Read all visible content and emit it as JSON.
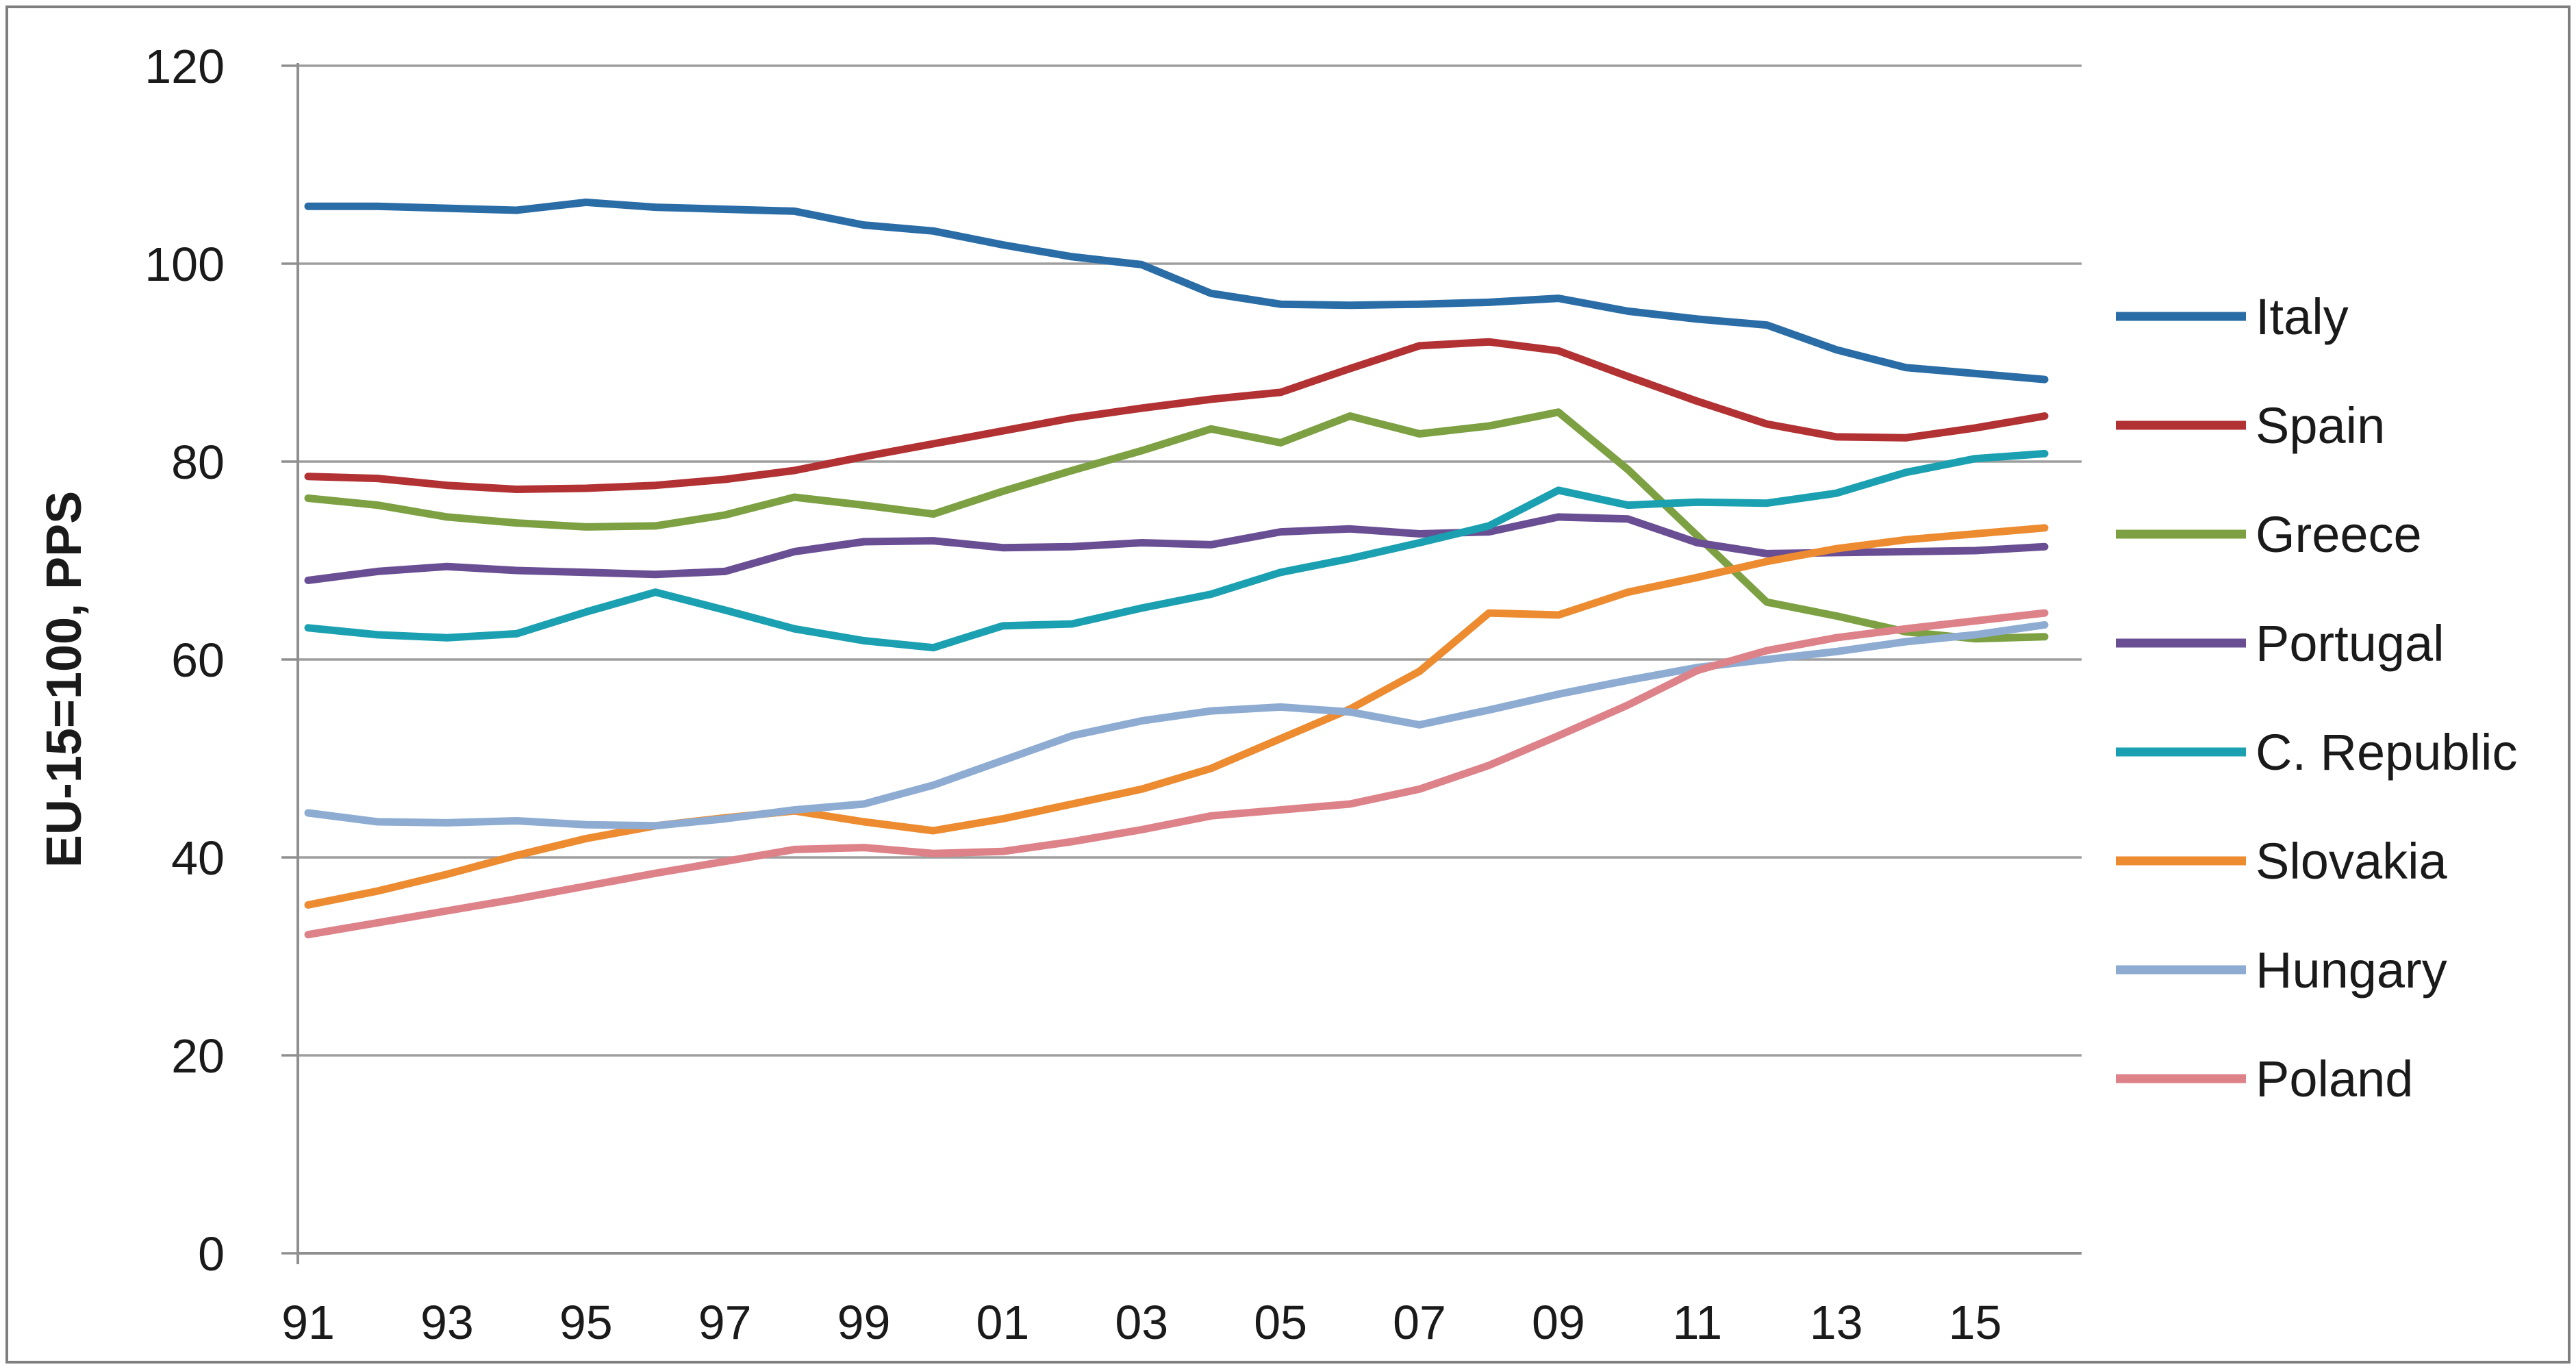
{
  "figure": {
    "background": "#FFFFFF",
    "border_color": "#7F7F7F"
  },
  "chart_data": {
    "type": "line",
    "title": "",
    "ylabel": "EU-15=100, PPS",
    "xlabel": "",
    "ylim": [
      0,
      120
    ],
    "yticks": [
      0,
      20,
      40,
      60,
      80,
      100,
      120
    ],
    "grid": "horizontal",
    "grid_color": "#9E9E9E",
    "axis_color": "#8F8F8F",
    "text_color": "#1A1A1A",
    "legend_position": "right",
    "x": [
      1991,
      1992,
      1993,
      1994,
      1995,
      1996,
      1997,
      1998,
      1999,
      2000,
      2001,
      2002,
      2003,
      2004,
      2005,
      2006,
      2007,
      2008,
      2009,
      2010,
      2011,
      2012,
      2013,
      2014,
      2015,
      2016
    ],
    "x_tick_labels": [
      "91",
      "93",
      "95",
      "97",
      "99",
      "01",
      "03",
      "05",
      "07",
      "09",
      "11",
      "13",
      "15"
    ],
    "x_tick_years": [
      1991,
      1993,
      1995,
      1997,
      1999,
      2001,
      2003,
      2005,
      2007,
      2009,
      2011,
      2013,
      2015
    ],
    "series": [
      {
        "name": "Italy",
        "color": "#2A6CA6",
        "values": [
          105.8,
          105.8,
          105.6,
          105.4,
          106.2,
          105.7,
          105.5,
          105.3,
          103.9,
          103.3,
          101.9,
          100.7,
          99.9,
          97.0,
          95.9,
          95.8,
          95.9,
          96.1,
          96.5,
          95.2,
          94.4,
          93.8,
          91.3,
          89.5,
          88.9,
          88.3
        ]
      },
      {
        "name": "Spain",
        "color": "#B23133",
        "values": [
          78.5,
          78.3,
          77.6,
          77.2,
          77.3,
          77.6,
          78.2,
          79.1,
          80.5,
          81.8,
          83.1,
          84.4,
          85.4,
          86.3,
          87.0,
          89.4,
          91.7,
          92.1,
          91.2,
          88.6,
          86.1,
          83.8,
          82.5,
          82.4,
          83.4,
          84.6
        ]
      },
      {
        "name": "Greece",
        "color": "#7CA042",
        "values": [
          76.3,
          75.6,
          74.4,
          73.8,
          73.4,
          73.5,
          74.6,
          76.4,
          75.6,
          74.7,
          77.0,
          79.1,
          81.1,
          83.3,
          81.9,
          84.6,
          82.8,
          83.6,
          85.0,
          79.2,
          72.5,
          65.8,
          64.4,
          62.8,
          62.1,
          62.3
        ]
      },
      {
        "name": "Portugal",
        "color": "#6A4E93",
        "values": [
          68.0,
          68.9,
          69.4,
          69.0,
          68.8,
          68.6,
          68.9,
          70.9,
          71.9,
          72.0,
          71.3,
          71.4,
          71.8,
          71.6,
          72.9,
          73.2,
          72.7,
          72.9,
          74.4,
          74.2,
          71.8,
          70.7,
          70.8,
          70.9,
          71.0,
          71.4
        ]
      },
      {
        "name": "C. Republic",
        "color": "#1AA0B0",
        "values": [
          63.2,
          62.5,
          62.2,
          62.6,
          64.8,
          66.8,
          65.0,
          63.1,
          61.9,
          61.2,
          63.4,
          63.6,
          65.2,
          66.6,
          68.8,
          70.2,
          71.8,
          73.5,
          77.1,
          75.6,
          75.9,
          75.8,
          76.8,
          78.9,
          80.3,
          80.8
        ]
      },
      {
        "name": "Slovakia",
        "color": "#ED8B30",
        "values": [
          35.2,
          36.6,
          38.3,
          40.2,
          41.9,
          43.2,
          44.0,
          44.7,
          43.6,
          42.7,
          43.9,
          45.4,
          46.9,
          49.0,
          52.0,
          55.0,
          58.8,
          64.7,
          64.5,
          66.8,
          68.3,
          69.9,
          71.2,
          72.1,
          72.7,
          73.3
        ]
      },
      {
        "name": "Hungary",
        "color": "#8EACD2",
        "values": [
          44.5,
          43.6,
          43.5,
          43.7,
          43.3,
          43.2,
          43.9,
          44.8,
          45.4,
          47.3,
          49.8,
          52.3,
          53.8,
          54.8,
          55.2,
          54.7,
          53.4,
          54.9,
          56.5,
          57.9,
          59.2,
          60.0,
          60.8,
          61.8,
          62.5,
          63.5
        ]
      },
      {
        "name": "Poland",
        "color": "#DE828A",
        "values": [
          32.2,
          33.4,
          34.6,
          35.8,
          37.1,
          38.4,
          39.6,
          40.8,
          41.0,
          40.4,
          40.6,
          41.6,
          42.8,
          44.2,
          44.8,
          45.4,
          46.9,
          49.3,
          52.3,
          55.4,
          58.9,
          60.9,
          62.2,
          63.1,
          63.9,
          64.7
        ]
      }
    ]
  }
}
